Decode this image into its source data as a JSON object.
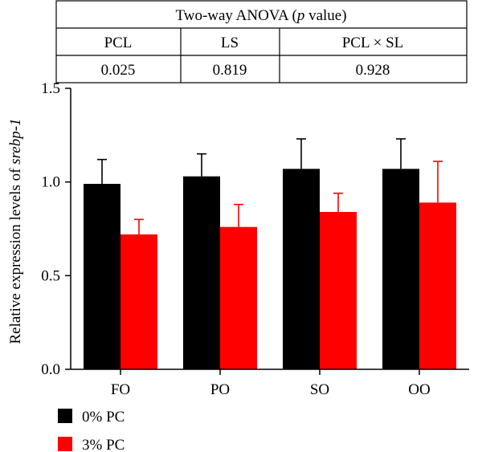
{
  "anova_table": {
    "title_prefix": "Two-way ANOVA (",
    "title_italic": "p",
    "title_suffix": " value)",
    "headers": [
      "PCL",
      "LS",
      "PCL × SL"
    ],
    "values": [
      "0.025",
      "0.819",
      "0.928"
    ]
  },
  "chart_data": {
    "type": "bar",
    "title": "",
    "xlabel": "",
    "ylabel_prefix": "Relative expression levels of ",
    "ylabel_italic": "srebp-1",
    "categories": [
      "FO",
      "PO",
      "SO",
      "OO"
    ],
    "series": [
      {
        "name": "0% PC",
        "color": "#000000",
        "values": [
          0.99,
          1.03,
          1.07,
          1.07
        ],
        "errors": [
          0.13,
          0.12,
          0.16,
          0.16
        ]
      },
      {
        "name": "3% PC",
        "color": "#ff0000",
        "values": [
          0.72,
          0.76,
          0.84,
          0.89
        ],
        "errors": [
          0.08,
          0.12,
          0.1,
          0.22
        ]
      }
    ],
    "ylim": [
      0,
      1.5
    ],
    "yticks": [
      "0.0",
      "0.5",
      "1.0",
      "1.5"
    ],
    "grid": false,
    "legend_position": "bottom-left",
    "error_bars": "upper"
  }
}
